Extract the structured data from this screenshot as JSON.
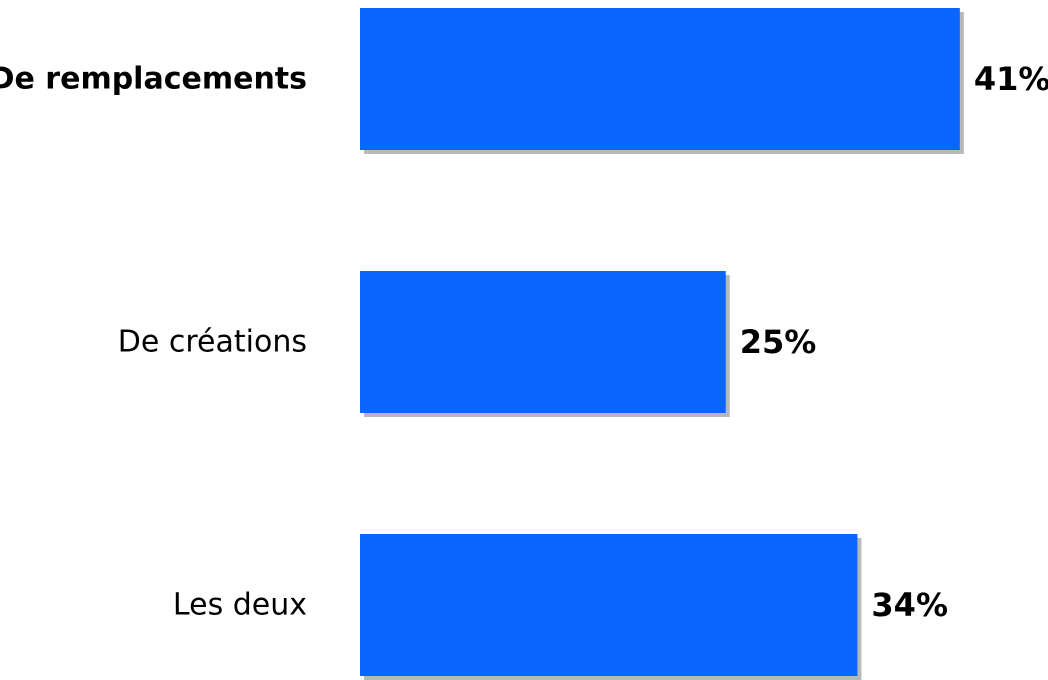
{
  "chart_data": {
    "type": "bar",
    "orientation": "horizontal",
    "categories": [
      "De remplacements",
      "De créations",
      "Les deux"
    ],
    "values": [
      41,
      25,
      34
    ],
    "value_labels": [
      "41%",
      "25%",
      "34%"
    ],
    "emphasized_category": "De remplacements",
    "grid": false,
    "legend": "none"
  },
  "colors": {
    "bar": "#0a66ff",
    "bar_shadow": "#b8b8b8",
    "text": "#000000",
    "background": "#ffffff"
  }
}
